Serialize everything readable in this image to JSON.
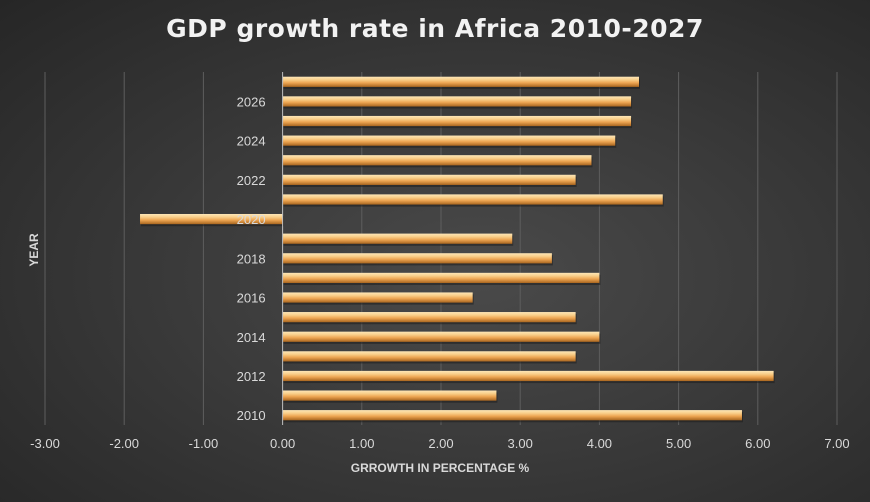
{
  "chart_data": {
    "type": "bar",
    "orientation": "horizontal",
    "title": "GDP growth rate in Africa 2010-2027",
    "xlabel": "GRROWTH IN PERCENTAGE %",
    "ylabel": "YEAR",
    "xlim": [
      -3,
      7
    ],
    "x_ticks": [
      "-3.00",
      "-2.00",
      "-1.00",
      "0.00",
      "1.00",
      "2.00",
      "3.00",
      "4.00",
      "5.00",
      "6.00",
      "7.00"
    ],
    "y_tick_labels_shown": [
      "2010",
      "2012",
      "2014",
      "2016",
      "2018",
      "2020",
      "2022",
      "2024",
      "2026"
    ],
    "grid": true,
    "legend": "none",
    "categories": [
      "2010",
      "2011",
      "2012",
      "2013",
      "2014",
      "2015",
      "2016",
      "2017",
      "2018",
      "2019",
      "2020",
      "2021",
      "2022",
      "2023",
      "2024",
      "2025",
      "2026",
      "2027"
    ],
    "values": [
      5.8,
      2.7,
      6.2,
      3.7,
      4.0,
      3.7,
      2.4,
      4.0,
      3.4,
      2.9,
      -1.8,
      4.8,
      3.7,
      3.9,
      4.2,
      4.4,
      4.4,
      4.5
    ],
    "bar_color": "#f0b060",
    "background_color": "#3a3a3a"
  }
}
